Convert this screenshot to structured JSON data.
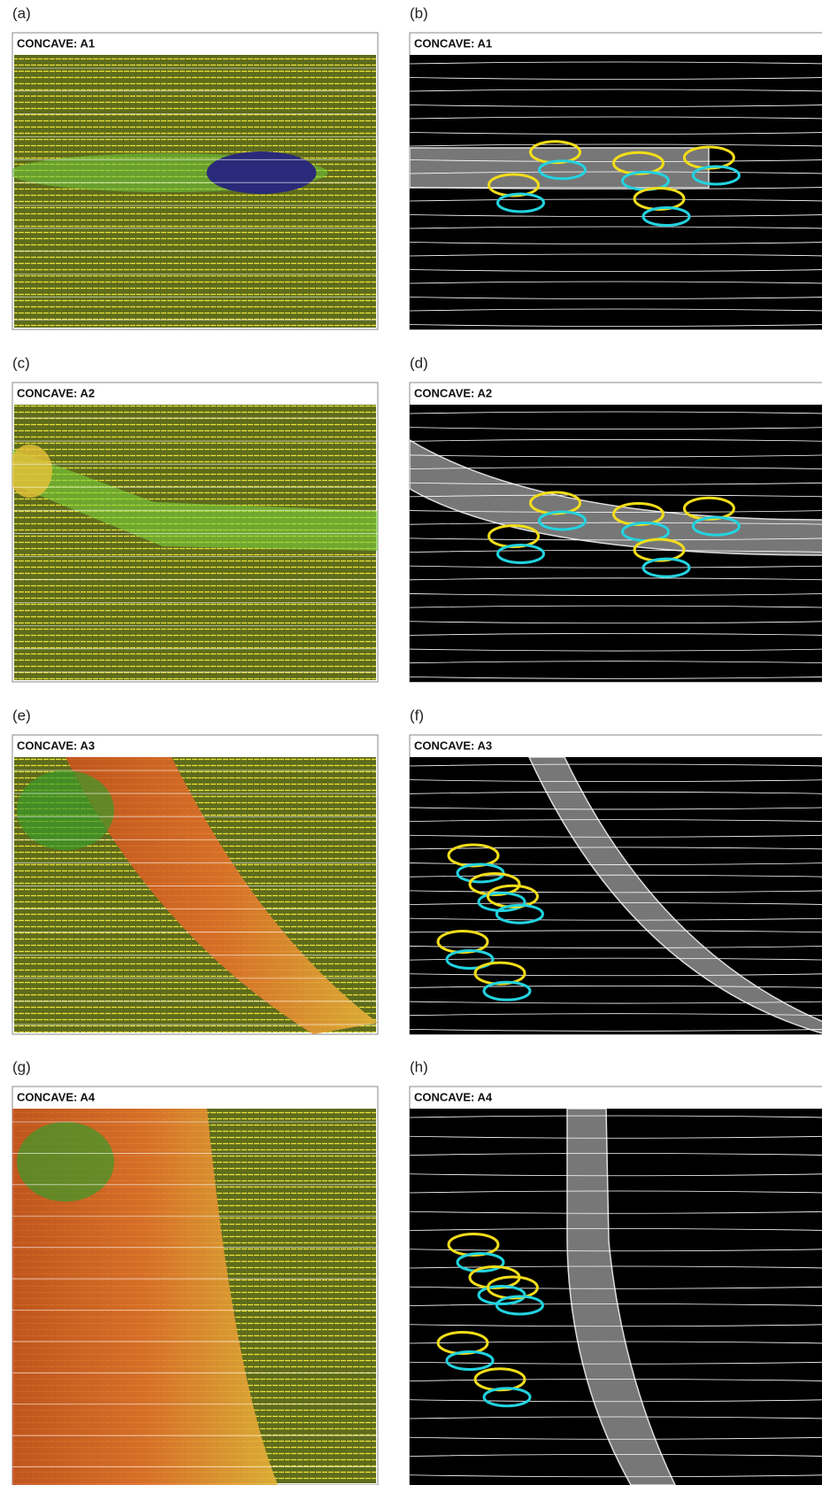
{
  "panels": [
    {
      "label": "(a)",
      "title": "CONCAVE: A1"
    },
    {
      "label": "(b)",
      "title": "CONCAVE: A1"
    },
    {
      "label": "(c)",
      "title": "CONCAVE: A2"
    },
    {
      "label": "(d)",
      "title": "CONCAVE: A2"
    },
    {
      "label": "(e)",
      "title": "CONCAVE: A3"
    },
    {
      "label": "(f)",
      "title": "CONCAVE: A3"
    },
    {
      "label": "(g)",
      "title": "CONCAVE: A4"
    },
    {
      "label": "(h)",
      "title": "CONCAVE: A4"
    }
  ]
}
